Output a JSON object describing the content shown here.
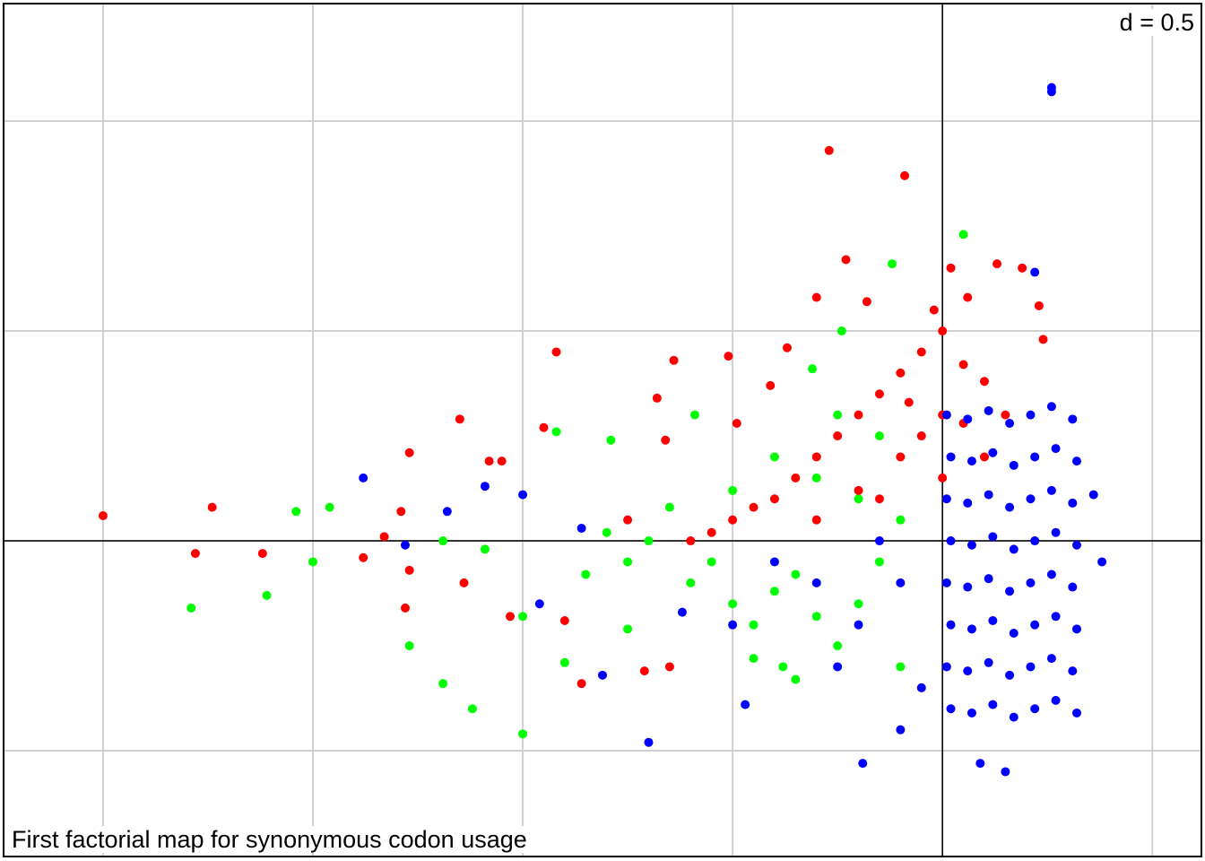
{
  "chart_data": {
    "type": "scatter",
    "title": "First factorial map for synonymous codon usage",
    "annotation": "d = 0.5",
    "xlim": [
      -2.237,
      0.617
    ],
    "ylim": [
      -0.752,
      1.28
    ],
    "xticks": [
      -2.0,
      -1.5,
      -1.0,
      -0.5,
      0,
      0.5
    ],
    "yticks": [
      -0.5,
      0,
      0.5,
      1.0
    ],
    "grid": true,
    "series": [
      {
        "color": "#00ff00",
        "x": [
          -1.79,
          -1.61,
          -1.54,
          -1.46,
          -1.5,
          -1.27,
          -1.19,
          -1.12,
          -1.0,
          -1.19,
          -1.09,
          -1.0,
          -0.92,
          -0.59,
          -0.79,
          0.05,
          -0.12,
          -0.24,
          -0.31,
          -0.35,
          -0.9,
          -0.75,
          -0.6,
          -0.55,
          -0.5,
          -0.45,
          -0.4,
          -0.35,
          -0.3,
          -0.25,
          -0.2,
          -0.15,
          -0.1,
          -0.2,
          -0.3,
          -0.4,
          -0.5,
          -0.65,
          -0.7,
          -0.75,
          -0.8,
          -0.85,
          -0.45,
          -0.38,
          -0.25,
          -0.15,
          -0.1
        ],
        "values": [
          -0.16,
          -0.13,
          0.07,
          0.08,
          -0.05,
          -0.25,
          -0.34,
          -0.4,
          -0.46,
          0.0,
          -0.02,
          -0.18,
          0.26,
          0.3,
          0.24,
          0.73,
          0.66,
          0.5,
          0.41,
          -0.33,
          -0.29,
          -0.21,
          -0.1,
          -0.05,
          -0.15,
          -0.2,
          -0.12,
          -0.08,
          -0.18,
          -0.25,
          -0.15,
          -0.05,
          0.05,
          0.1,
          0.15,
          0.2,
          0.12,
          0.08,
          0.0,
          -0.05,
          0.02,
          -0.08,
          -0.28,
          -0.3,
          0.3,
          0.25,
          -0.3
        ]
      },
      {
        "color": "#ff0000",
        "x": [
          -2.0,
          -1.74,
          -1.78,
          -1.62,
          -1.27,
          -1.15,
          -0.92,
          -0.64,
          -0.51,
          -0.27,
          -0.09,
          -0.23,
          0.02,
          0.13,
          -0.3,
          -0.68,
          -0.95,
          -1.08,
          -1.05,
          -1.29,
          -1.33,
          -1.38,
          -1.27,
          -1.14,
          -1.28,
          -1.03,
          -0.86,
          -0.71,
          -0.65,
          -0.9,
          -0.75,
          -0.66,
          -0.49,
          -0.41,
          -0.37,
          -0.18,
          -0.02,
          0.06,
          0.19,
          0.24,
          0.23,
          -0.3,
          -0.25,
          -0.2,
          -0.15,
          -0.1,
          -0.05,
          0.0,
          0.05,
          0.1,
          -0.1,
          -0.05,
          0.0,
          0.05,
          -0.2,
          -0.15,
          -0.35,
          -0.4,
          -0.45,
          -0.5,
          -0.55,
          -0.6,
          -0.3,
          0.1,
          0.15,
          0.0,
          -0.08
        ],
        "values": [
          0.06,
          0.08,
          -0.03,
          -0.03,
          0.21,
          0.29,
          0.45,
          0.43,
          0.44,
          0.93,
          0.87,
          0.67,
          0.65,
          0.66,
          0.58,
          0.34,
          0.27,
          0.19,
          0.19,
          0.07,
          0.01,
          -0.04,
          -0.07,
          -0.1,
          -0.16,
          -0.18,
          -0.34,
          -0.31,
          -0.3,
          -0.19,
          0.05,
          0.24,
          0.28,
          0.37,
          0.46,
          0.57,
          0.55,
          0.58,
          0.65,
          0.48,
          0.56,
          0.2,
          0.25,
          0.3,
          0.35,
          0.4,
          0.45,
          0.5,
          0.42,
          0.38,
          0.2,
          0.25,
          0.3,
          0.28,
          0.12,
          0.1,
          0.15,
          0.1,
          0.08,
          0.05,
          0.02,
          0.0,
          0.05,
          0.2,
          0.3,
          0.15,
          0.33
        ]
      },
      {
        "color": "#0000ff",
        "x": [
          0.26,
          0.26,
          0.22,
          -1.38,
          -1.09,
          -1.0,
          -1.18,
          -1.28,
          -0.96,
          -0.7,
          -0.19,
          0.09,
          0.15,
          0.38,
          0.36,
          -0.47,
          -0.81,
          -0.62,
          -0.86,
          -0.3,
          -0.2,
          -0.15,
          -0.1,
          -0.25,
          -0.05,
          -0.1,
          -0.4,
          -0.5,
          0.02,
          0.07,
          0.12,
          0.17,
          0.22,
          0.27,
          0.32,
          0.01,
          0.06,
          0.11,
          0.16,
          0.21,
          0.26,
          0.31,
          0.02,
          0.07,
          0.12,
          0.17,
          0.22,
          0.27,
          0.32,
          0.01,
          0.06,
          0.11,
          0.16,
          0.21,
          0.26,
          0.31,
          0.02,
          0.07,
          0.12,
          0.17,
          0.22,
          0.27,
          0.32,
          0.01,
          0.06,
          0.11,
          0.16,
          0.21,
          0.26,
          0.31,
          0.02,
          0.07,
          0.12,
          0.17,
          0.22,
          0.27,
          0.32,
          0.01,
          0.06,
          0.11,
          0.16,
          0.21,
          0.26,
          0.31
        ],
        "values": [
          1.08,
          1.07,
          0.64,
          0.15,
          0.13,
          0.11,
          0.07,
          -0.01,
          -0.15,
          -0.48,
          -0.53,
          -0.53,
          -0.55,
          -0.05,
          0.11,
          -0.39,
          -0.32,
          -0.17,
          0.03,
          -0.1,
          -0.2,
          0.0,
          -0.1,
          -0.3,
          -0.35,
          -0.45,
          -0.05,
          -0.2,
          -0.4,
          -0.41,
          -0.39,
          -0.42,
          -0.4,
          -0.38,
          -0.41,
          -0.3,
          -0.31,
          -0.29,
          -0.32,
          -0.3,
          -0.28,
          -0.31,
          -0.2,
          -0.21,
          -0.19,
          -0.22,
          -0.2,
          -0.18,
          -0.21,
          -0.1,
          -0.11,
          -0.09,
          -0.12,
          -0.1,
          -0.08,
          -0.11,
          0.0,
          -0.01,
          0.01,
          -0.02,
          0.0,
          0.02,
          -0.01,
          0.1,
          0.09,
          0.11,
          0.08,
          0.1,
          0.12,
          0.09,
          0.2,
          0.19,
          0.21,
          0.18,
          0.2,
          0.22,
          0.19,
          0.3,
          0.29,
          0.31,
          0.28,
          0.3,
          0.32,
          0.29
        ]
      }
    ]
  }
}
